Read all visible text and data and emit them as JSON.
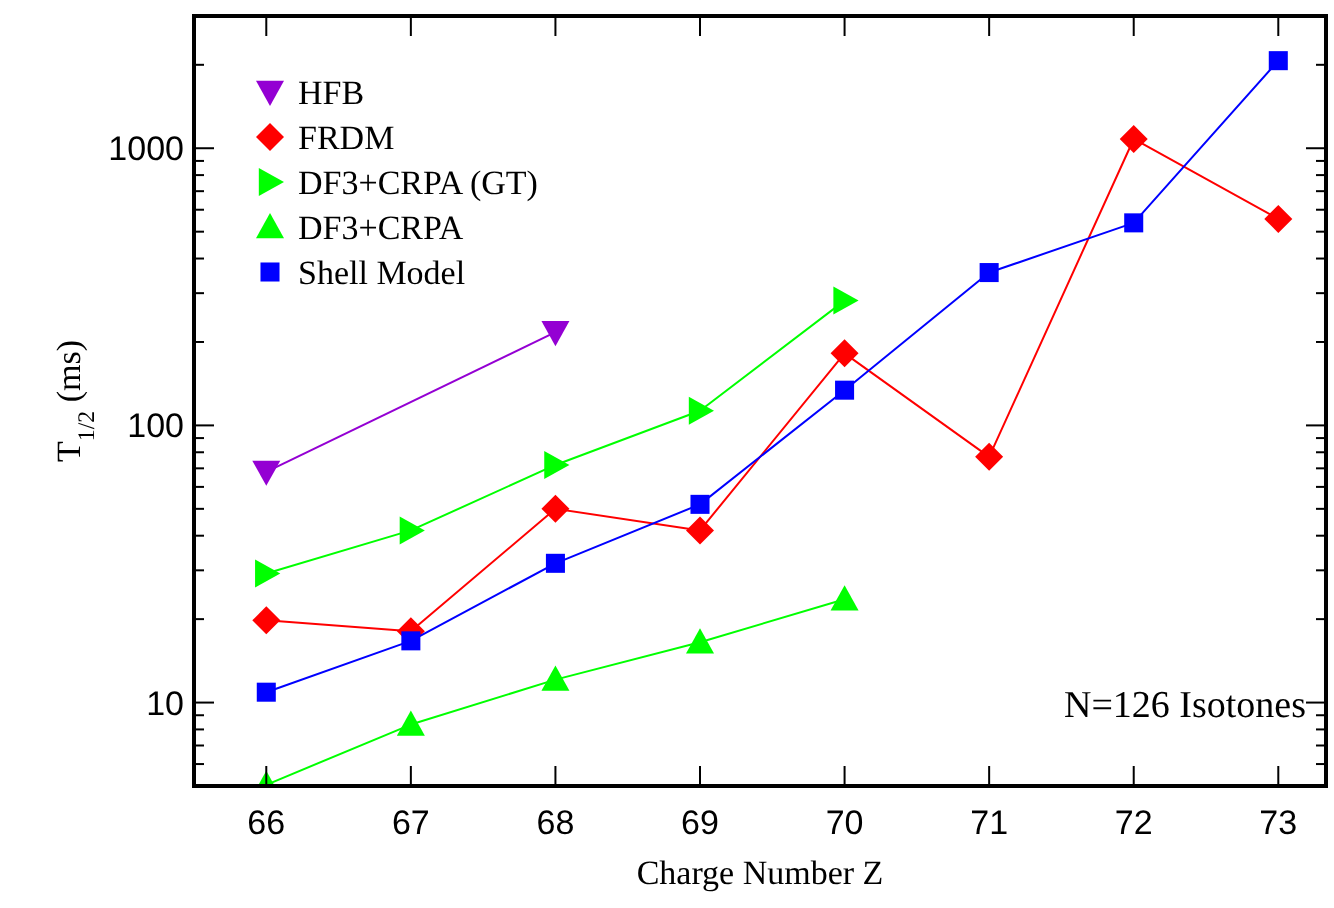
{
  "chart_data": {
    "type": "line",
    "xlabel": "Charge Number Z",
    "ylabel": "T$_{1/2}$ (ms)",
    "log": "y",
    "legend": "top left",
    "annotations": [
      "N=126 Isotones"
    ],
    "xlim": [
      65.5,
      73.33
    ],
    "xticks": [
      66,
      67,
      68,
      69,
      70,
      71,
      72,
      73
    ],
    "ylim": [
      5,
      3000
    ],
    "yticks": [
      {
        "value": 5,
        "label": null
      },
      {
        "value": 6,
        "label": null
      },
      {
        "value": 7,
        "label": null
      },
      {
        "value": 8,
        "label": null
      },
      {
        "value": 9,
        "label": null
      },
      10,
      {
        "value": 20,
        "label": null
      },
      {
        "value": 30,
        "label": null
      },
      {
        "value": 40,
        "label": null
      },
      {
        "value": 50,
        "label": null
      },
      {
        "value": 60,
        "label": null
      },
      {
        "value": 70,
        "label": null
      },
      {
        "value": 80,
        "label": null
      },
      {
        "value": 90,
        "label": null
      },
      100,
      {
        "value": 200,
        "label": null
      },
      {
        "value": 300,
        "label": null
      },
      {
        "value": 400,
        "label": null
      },
      {
        "value": 500,
        "label": null
      },
      {
        "value": 600,
        "label": null
      },
      {
        "value": 700,
        "label": null
      },
      {
        "value": 800,
        "label": null
      },
      {
        "value": 900,
        "label": null
      },
      1000,
      {
        "value": 2000,
        "label": null
      },
      {
        "value": 3000,
        "label": null
      }
    ],
    "series": [
      {
        "name": "HFB",
        "color": "#9400d3",
        "marker": "triangle-down",
        "x": [
          66,
          68
        ],
        "values": [
          68,
          217
        ]
      },
      {
        "name": "FRDM",
        "color": "#ff0000",
        "marker": "diamond",
        "x": [
          66,
          67,
          68,
          69,
          70,
          71,
          72,
          73
        ],
        "values": [
          19.8,
          18.1,
          50,
          41.8,
          182,
          77,
          1080,
          556
        ]
      },
      {
        "name": "DF3+CRPA (GT)",
        "color": "#00ff00",
        "marker": "triangle-right",
        "x": [
          66,
          67,
          68,
          69,
          70
        ],
        "values": [
          29.2,
          41.8,
          72,
          113,
          282
        ]
      },
      {
        "name": "DF3+CRPA",
        "color": "#00ff00",
        "marker": "triangle",
        "x": [
          66,
          67,
          68,
          69,
          70
        ],
        "values": [
          5.05,
          8.33,
          12.1,
          16.5,
          23.6
        ]
      },
      {
        "name": "Shell Model",
        "color": "#0000ff",
        "marker": "square",
        "x": [
          66,
          67,
          68,
          69,
          70,
          71,
          72,
          73
        ],
        "values": [
          10.9,
          16.7,
          31.8,
          51.9,
          134,
          356,
          538,
          2070
        ]
      }
    ]
  }
}
